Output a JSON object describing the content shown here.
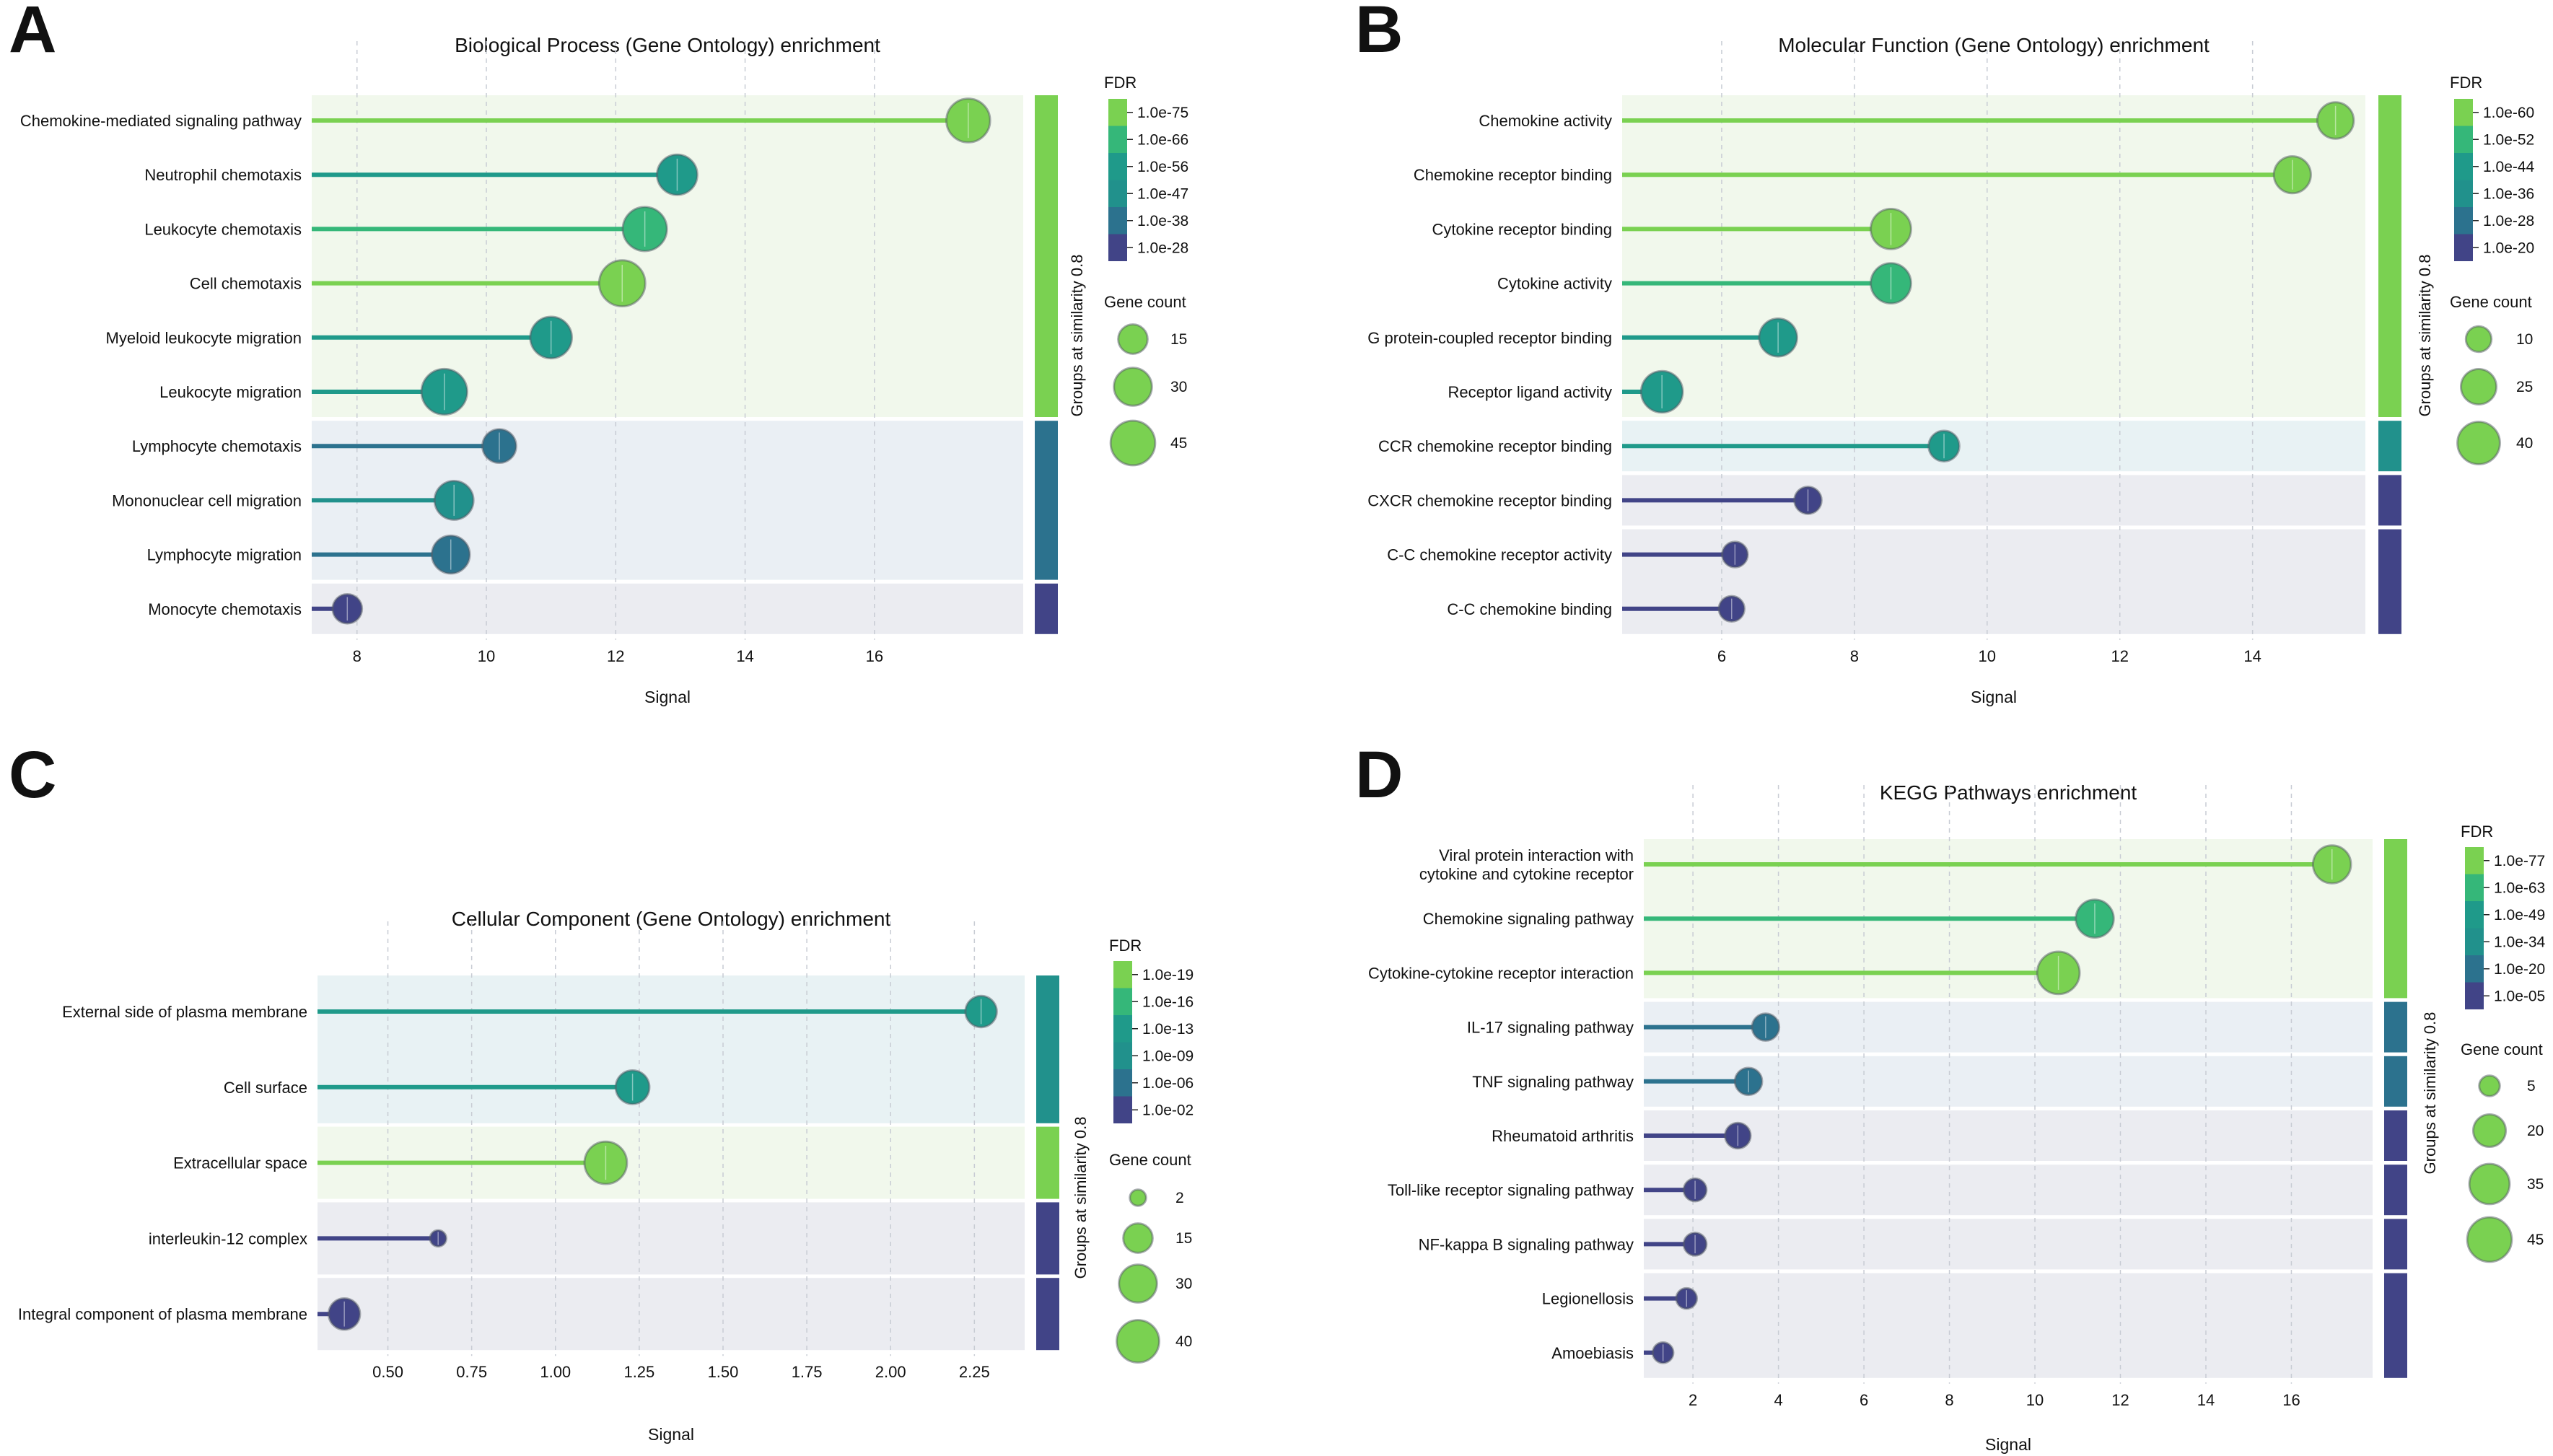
{
  "chart_data": [
    {
      "panel": "A",
      "type": "lollipop",
      "title": "Biological Process (Gene Ontology) enrichment",
      "xlabel": "Signal",
      "xlim": [
        7.3,
        18.3
      ],
      "xticks": [
        8,
        10,
        12,
        14,
        16
      ],
      "xtick_labels": [
        "8",
        "10",
        "12",
        "14",
        "16"
      ],
      "fdr_legend": {
        "title": "FDR",
        "labels": [
          "1.0e-75",
          "1.0e-66",
          "1.0e-56",
          "1.0e-47",
          "1.0e-38",
          "1.0e-28"
        ]
      },
      "size_legend": {
        "title": "Gene count",
        "values": [
          15,
          30,
          45
        ]
      },
      "group_axis_label": "Groups at similarity 0.8",
      "groups": [
        {
          "color": "#7ad151",
          "bg": "#f1f8ec",
          "count": 6
        },
        {
          "color": "#2c728e",
          "bg": "#eaeff4",
          "count": 3
        },
        {
          "color": "#414487",
          "bg": "#ebecf1",
          "count": 1
        }
      ],
      "terms": [
        {
          "label": "Chemokine-mediated signaling pathway",
          "signal": 17.45,
          "fdr_level": 0,
          "count": 43
        },
        {
          "label": "Neutrophil chemotaxis",
          "signal": 12.95,
          "fdr_level": 2,
          "count": 35
        },
        {
          "label": "Leukocyte chemotaxis",
          "signal": 12.45,
          "fdr_level": 1,
          "count": 44
        },
        {
          "label": "Cell chemotaxis",
          "signal": 12.1,
          "fdr_level": 0,
          "count": 49
        },
        {
          "label": "Myeloid leukocyte migration",
          "signal": 11.0,
          "fdr_level": 2,
          "count": 38
        },
        {
          "label": "Leukocyte migration",
          "signal": 9.35,
          "fdr_level": 2,
          "count": 48
        },
        {
          "label": "Lymphocyte chemotaxis",
          "signal": 10.2,
          "fdr_level": 4,
          "count": 22
        },
        {
          "label": "Mononuclear cell migration",
          "signal": 9.5,
          "fdr_level": 3,
          "count": 32
        },
        {
          "label": "Lymphocyte migration",
          "signal": 9.45,
          "fdr_level": 4,
          "count": 30
        },
        {
          "label": "Monocyte chemotaxis",
          "signal": 7.85,
          "fdr_level": 5,
          "count": 15
        }
      ]
    },
    {
      "panel": "B",
      "type": "lollipop",
      "title": "Molecular Function (Gene Ontology) enrichment",
      "xlabel": "Signal",
      "xlim": [
        4.5,
        15.7
      ],
      "xticks": [
        6,
        8,
        10,
        12,
        14
      ],
      "xtick_labels": [
        "6",
        "8",
        "10",
        "12",
        "14"
      ],
      "fdr_legend": {
        "title": "FDR",
        "labels": [
          "1.0e-60",
          "1.0e-52",
          "1.0e-44",
          "1.0e-36",
          "1.0e-28",
          "1.0e-20"
        ]
      },
      "size_legend": {
        "title": "Gene count",
        "values": [
          10,
          25,
          40
        ]
      },
      "group_axis_label": "Groups at similarity 0.8",
      "groups": [
        {
          "color": "#7ad151",
          "bg": "#f1f8ec",
          "count": 6
        },
        {
          "color": "#21918c",
          "bg": "#e8f2f4",
          "count": 1
        },
        {
          "color": "#414487",
          "bg": "#ebecf1",
          "count": 1
        },
        {
          "color": "#414487",
          "bg": "#ebecf1",
          "count": 2
        }
      ],
      "terms": [
        {
          "label": "Chemokine activity",
          "signal": 15.25,
          "fdr_level": 0,
          "count": 27
        },
        {
          "label": "Chemokine receptor binding",
          "signal": 14.6,
          "fdr_level": 0,
          "count": 28
        },
        {
          "label": "Cytokine receptor binding",
          "signal": 8.55,
          "fdr_level": 0,
          "count": 35
        },
        {
          "label": "Cytokine activity",
          "signal": 8.55,
          "fdr_level": 1,
          "count": 35
        },
        {
          "label": "G protein-coupled receptor binding",
          "signal": 6.85,
          "fdr_level": 2,
          "count": 30
        },
        {
          "label": "Receptor ligand activity",
          "signal": 5.1,
          "fdr_level": 2,
          "count": 38
        },
        {
          "label": "CCR chemokine receptor binding",
          "signal": 9.35,
          "fdr_level": 2,
          "count": 17
        },
        {
          "label": "CXCR chemokine receptor binding",
          "signal": 7.3,
          "fdr_level": 5,
          "count": 12
        },
        {
          "label": "C-C chemokine receptor activity",
          "signal": 6.2,
          "fdr_level": 5,
          "count": 10
        },
        {
          "label": "C-C chemokine binding",
          "signal": 6.15,
          "fdr_level": 5,
          "count": 10
        }
      ]
    },
    {
      "panel": "C",
      "type": "lollipop",
      "title": "Cellular Component (Gene Ontology) enrichment",
      "xlabel": "Signal",
      "xlim": [
        0.29,
        2.4
      ],
      "xticks": [
        0.5,
        0.75,
        1.0,
        1.25,
        1.5,
        1.75,
        2.0,
        2.25
      ],
      "xtick_labels": [
        "0.50",
        "0.75",
        "1.00",
        "1.25",
        "1.50",
        "1.75",
        "2.00",
        "2.25"
      ],
      "fdr_legend": {
        "title": "FDR",
        "labels": [
          "1.0e-19",
          "1.0e-16",
          "1.0e-13",
          "1.0e-09",
          "1.0e-06",
          "1.0e-02"
        ]
      },
      "size_legend": {
        "title": "Gene count",
        "values": [
          2,
          15,
          30,
          40
        ]
      },
      "group_axis_label": "Groups at similarity 0.8",
      "groups": [
        {
          "color": "#21918c",
          "bg": "#e8f2f4",
          "count": 2
        },
        {
          "color": "#7ad151",
          "bg": "#f1f8ec",
          "count": 1
        },
        {
          "color": "#414487",
          "bg": "#ebecf1",
          "count": 1
        },
        {
          "color": "#414487",
          "bg": "#ebecf1",
          "count": 1
        }
      ],
      "terms": [
        {
          "label": "External side of plasma membrane",
          "signal": 2.27,
          "fdr_level": 2,
          "count": 18
        },
        {
          "label": "Cell surface",
          "signal": 1.23,
          "fdr_level": 2,
          "count": 22
        },
        {
          "label": "Extracellular space",
          "signal": 1.15,
          "fdr_level": 0,
          "count": 40
        },
        {
          "label": "interleukin-12 complex",
          "signal": 0.65,
          "fdr_level": 5,
          "count": 2
        },
        {
          "label": "Integral component of plasma membrane",
          "signal": 0.37,
          "fdr_level": 5,
          "count": 18
        }
      ]
    },
    {
      "panel": "D",
      "type": "lollipop",
      "title": "KEGG Pathways enrichment",
      "xlabel": "Signal",
      "xlim": [
        0.85,
        17.9
      ],
      "xticks": [
        2,
        4,
        6,
        8,
        10,
        12,
        14,
        16
      ],
      "xtick_labels": [
        "2",
        "4",
        "6",
        "8",
        "10",
        "12",
        "14",
        "16"
      ],
      "fdr_legend": {
        "title": "FDR",
        "labels": [
          "1.0e-77",
          "1.0e-63",
          "1.0e-49",
          "1.0e-34",
          "1.0e-20",
          "1.0e-05"
        ]
      },
      "size_legend": {
        "title": "Gene count",
        "values": [
          5,
          20,
          35,
          45
        ]
      },
      "group_axis_label": "Groups at similarity 0.8",
      "groups": [
        {
          "color": "#7ad151",
          "bg": "#f1f8ec",
          "count": 3
        },
        {
          "color": "#2c728e",
          "bg": "#eaeff4",
          "count": 1
        },
        {
          "color": "#2c728e",
          "bg": "#eaeff4",
          "count": 1
        },
        {
          "color": "#414487",
          "bg": "#ebecf1",
          "count": 1
        },
        {
          "color": "#414487",
          "bg": "#ebecf1",
          "count": 1
        },
        {
          "color": "#414487",
          "bg": "#ebecf1",
          "count": 1
        },
        {
          "color": "#414487",
          "bg": "#ebecf1",
          "count": 2
        }
      ],
      "terms": [
        {
          "label": "Viral protein interaction with cytokine and cytokine receptor",
          "label_lines": [
            "Viral protein interaction with",
            "cytokine and cytokine receptor"
          ],
          "signal": 16.95,
          "fdr_level": 0,
          "count": 30
        },
        {
          "label": "Chemokine signaling pathway",
          "signal": 11.4,
          "fdr_level": 1,
          "count": 30
        },
        {
          "label": "Cytokine-cytokine receptor interaction",
          "signal": 10.55,
          "fdr_level": 0,
          "count": 40
        },
        {
          "label": "IL-17 signaling pathway",
          "signal": 3.7,
          "fdr_level": 4,
          "count": 12
        },
        {
          "label": "TNF signaling pathway",
          "signal": 3.3,
          "fdr_level": 4,
          "count": 12
        },
        {
          "label": "Rheumatoid arthritis",
          "signal": 3.05,
          "fdr_level": 5,
          "count": 10
        },
        {
          "label": "Toll-like receptor signaling pathway",
          "signal": 2.05,
          "fdr_level": 5,
          "count": 7
        },
        {
          "label": "NF-kappa B signaling pathway",
          "signal": 2.05,
          "fdr_level": 5,
          "count": 7
        },
        {
          "label": "Legionellosis",
          "signal": 1.85,
          "fdr_level": 5,
          "count": 5
        },
        {
          "label": "Amoebiasis",
          "signal": 1.3,
          "fdr_level": 5,
          "count": 5
        }
      ]
    }
  ],
  "palette": {
    "fdr_colors": [
      "#7ad151",
      "#35b779",
      "#1f9a8a",
      "#21918c",
      "#2c728e",
      "#414487"
    ],
    "grid": "#c8ccd4",
    "marker_edge_alpha": 0.55
  }
}
